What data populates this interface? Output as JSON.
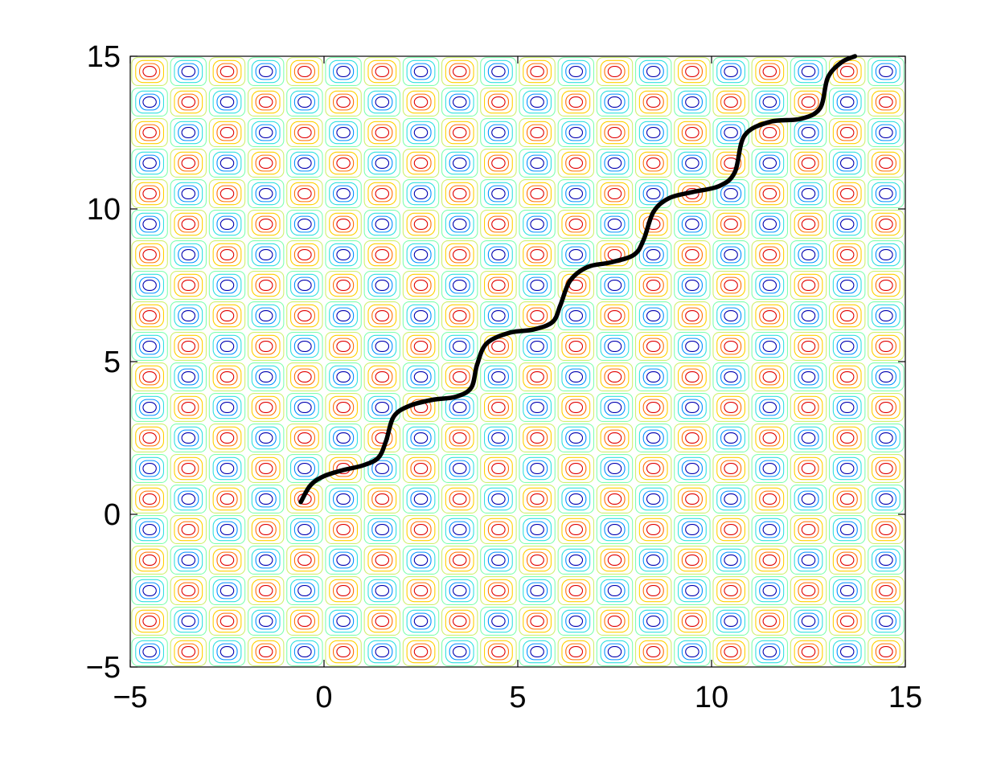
{
  "chart_data": {
    "type": "contour",
    "title": "",
    "xlabel": "",
    "ylabel": "",
    "xlim": [
      -5,
      15
    ],
    "ylim": [
      -5,
      15
    ],
    "xticks": [
      -5,
      0,
      5,
      10,
      15
    ],
    "yticks": [
      -5,
      0,
      5,
      10,
      15
    ],
    "xtick_labels": [
      "−5",
      "0",
      "5",
      "10",
      "15"
    ],
    "ytick_labels": [
      "−5",
      "0",
      "5",
      "10",
      "15"
    ],
    "grid": false,
    "contour_field": {
      "pattern": "checkerboard of alternating peaks and troughs, one extremum per unit cell",
      "centers_x": [
        -4.5,
        -3.5,
        -2.5,
        -1.5,
        -0.5,
        0.5,
        1.5,
        2.5,
        3.5,
        4.5,
        5.5,
        6.5,
        7.5,
        8.5,
        9.5,
        10.5,
        11.5,
        12.5,
        13.5,
        14.5
      ],
      "centers_y": [
        -4.5,
        -3.5,
        -2.5,
        -1.5,
        -0.5,
        0.5,
        1.5,
        2.5,
        3.5,
        4.5,
        5.5,
        6.5,
        7.5,
        8.5,
        9.5,
        10.5,
        11.5,
        12.5,
        13.5,
        14.5
      ],
      "peak_colors": [
        "#d0f070",
        "#ffd000",
        "#ff7000",
        "#e00000"
      ],
      "trough_colors": [
        "#80ffb0",
        "#30e0e0",
        "#0090ff",
        "#0000b0"
      ]
    },
    "series": [
      {
        "type": "line",
        "color": "#000000",
        "points": [
          [
            -0.6,
            0.4
          ],
          [
            -0.35,
            0.95
          ],
          [
            0.0,
            1.25
          ],
          [
            0.5,
            1.45
          ],
          [
            1.0,
            1.6
          ],
          [
            1.4,
            1.85
          ],
          [
            1.6,
            2.4
          ],
          [
            1.8,
            3.2
          ],
          [
            2.2,
            3.55
          ],
          [
            2.8,
            3.75
          ],
          [
            3.4,
            3.85
          ],
          [
            3.8,
            4.15
          ],
          [
            3.95,
            4.9
          ],
          [
            4.2,
            5.6
          ],
          [
            4.8,
            5.95
          ],
          [
            5.4,
            6.05
          ],
          [
            5.9,
            6.3
          ],
          [
            6.1,
            6.85
          ],
          [
            6.35,
            7.65
          ],
          [
            6.8,
            8.1
          ],
          [
            7.4,
            8.25
          ],
          [
            8.0,
            8.5
          ],
          [
            8.25,
            9.0
          ],
          [
            8.5,
            9.9
          ],
          [
            8.9,
            10.35
          ],
          [
            9.5,
            10.55
          ],
          [
            10.2,
            10.75
          ],
          [
            10.6,
            11.2
          ],
          [
            10.85,
            12.4
          ],
          [
            11.5,
            12.85
          ],
          [
            12.3,
            12.95
          ],
          [
            12.8,
            13.3
          ],
          [
            13.0,
            14.3
          ],
          [
            13.35,
            14.8
          ],
          [
            13.7,
            15.0
          ]
        ]
      }
    ]
  }
}
